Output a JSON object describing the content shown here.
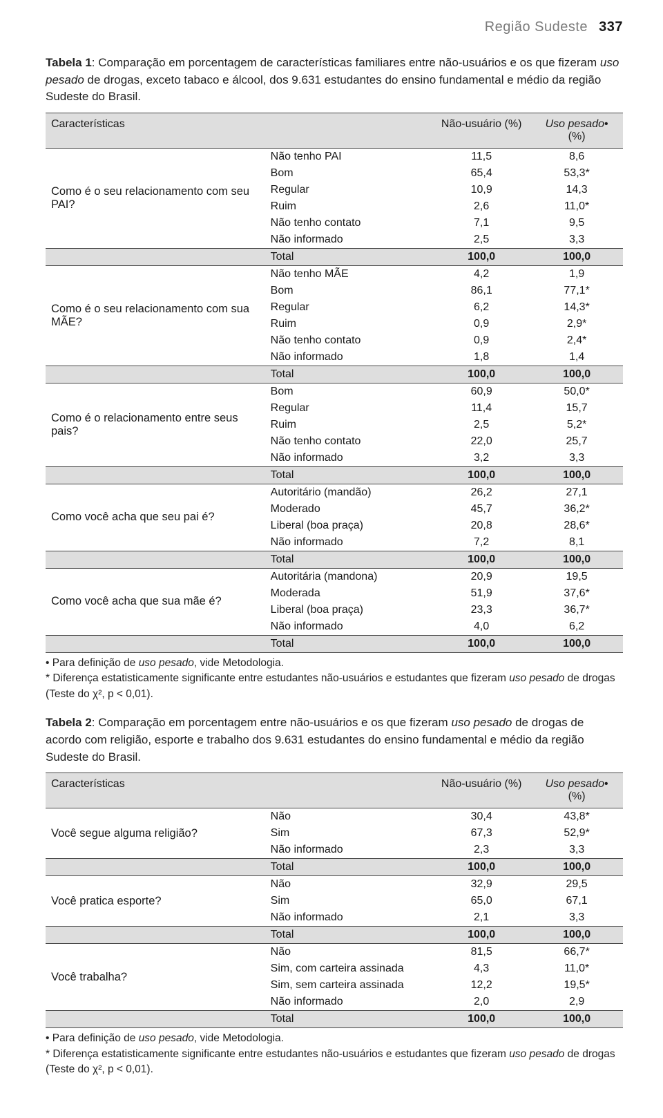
{
  "header": {
    "section": "Região Sudeste",
    "page": "337"
  },
  "cols": {
    "char": "Características",
    "opt": "",
    "nu": "Não-usuário (%)",
    "up": "Uso pesado• (%)"
  },
  "tot": "Total",
  "tv": "100,0",
  "table1": {
    "caption_lead": "Tabela 1",
    "caption_rest": ": Comparação em porcentagem de características familiares entre não-usuários e os que fizeram ",
    "caption_ital": "uso pesado",
    "caption_tail": " de drogas, exceto tabaco e álcool, dos 9.631 estudantes do ensino fundamental e médio da região Sudeste do Brasil.",
    "groups": [
      {
        "q": "Como é o seu relacionamento com seu PAI?",
        "rows": [
          [
            "Não tenho PAI",
            "11,5",
            "8,6"
          ],
          [
            "Bom",
            "65,4",
            "53,3*"
          ],
          [
            "Regular",
            "10,9",
            "14,3"
          ],
          [
            "Ruim",
            "2,6",
            "11,0*"
          ],
          [
            "Não tenho contato",
            "7,1",
            "9,5"
          ],
          [
            "Não informado",
            "2,5",
            "3,3"
          ]
        ]
      },
      {
        "q": "Como é o seu relacionamento com sua MÃE?",
        "rows": [
          [
            "Não tenho MÃE",
            "4,2",
            "1,9"
          ],
          [
            "Bom",
            "86,1",
            "77,1*"
          ],
          [
            "Regular",
            "6,2",
            "14,3*"
          ],
          [
            "Ruim",
            "0,9",
            "2,9*"
          ],
          [
            "Não tenho contato",
            "0,9",
            "2,4*"
          ],
          [
            "Não informado",
            "1,8",
            "1,4"
          ]
        ]
      },
      {
        "q": "Como é o relacionamento entre seus pais?",
        "rows": [
          [
            "Bom",
            "60,9",
            "50,0*"
          ],
          [
            "Regular",
            "11,4",
            "15,7"
          ],
          [
            "Ruim",
            "2,5",
            "5,2*"
          ],
          [
            "Não tenho contato",
            "22,0",
            "25,7"
          ],
          [
            "Não informado",
            "3,2",
            "3,3"
          ]
        ]
      },
      {
        "q": "Como você acha que seu pai é?",
        "rows": [
          [
            "Autoritário (mandão)",
            "26,2",
            "27,1"
          ],
          [
            "Moderado",
            "45,7",
            "36,2*"
          ],
          [
            "Liberal (boa praça)",
            "20,8",
            "28,6*"
          ],
          [
            "Não informado",
            "7,2",
            "8,1"
          ]
        ]
      },
      {
        "q": "Como você acha que sua mãe é?",
        "rows": [
          [
            "Autoritária (mandona)",
            "20,9",
            "19,5"
          ],
          [
            "Moderada",
            "51,9",
            "37,6*"
          ],
          [
            "Liberal (boa praça)",
            "23,3",
            "36,7*"
          ],
          [
            "Não informado",
            "4,0",
            "6,2"
          ]
        ]
      }
    ]
  },
  "foot": {
    "l1a": "• Para definição de ",
    "l1i": "uso pesado",
    "l1b": ", vide Metodologia.",
    "l2a": "* Diferença estatisticamente significante entre estudantes não-usuários e estudantes que fizeram ",
    "l2i": "uso pesado",
    "l2b": " de drogas (Teste do χ², p < 0,01)."
  },
  "table2": {
    "caption_lead": "Tabela 2",
    "caption_rest": ": Comparação em porcentagem entre não-usuários e os que fizeram ",
    "caption_ital": "uso pesado",
    "caption_tail": " de drogas de acordo com religião, esporte e trabalho dos 9.631 estudantes do ensino fundamental e médio da região Sudeste do Brasil.",
    "groups": [
      {
        "q": "Você segue alguma religião?",
        "rows": [
          [
            "Não",
            "30,4",
            "43,8*"
          ],
          [
            "Sim",
            "67,3",
            "52,9*"
          ],
          [
            "Não informado",
            "2,3",
            "3,3"
          ]
        ]
      },
      {
        "q": "Você pratica esporte?",
        "rows": [
          [
            "Não",
            "32,9",
            "29,5"
          ],
          [
            "Sim",
            "65,0",
            "67,1"
          ],
          [
            "Não informado",
            "2,1",
            "3,3"
          ]
        ]
      },
      {
        "q": "Você trabalha?",
        "rows": [
          [
            "Não",
            "81,5",
            "66,7*"
          ],
          [
            "Sim, com carteira assinada",
            "4,3",
            "11,0*"
          ],
          [
            "Sim, sem carteira assinada",
            "12,2",
            "19,5*"
          ],
          [
            "Não informado",
            "2,0",
            "2,9"
          ]
        ]
      }
    ]
  },
  "colors": {
    "band": "#dedede",
    "text": "#1a1a1a",
    "muted": "#7b7b7b"
  }
}
